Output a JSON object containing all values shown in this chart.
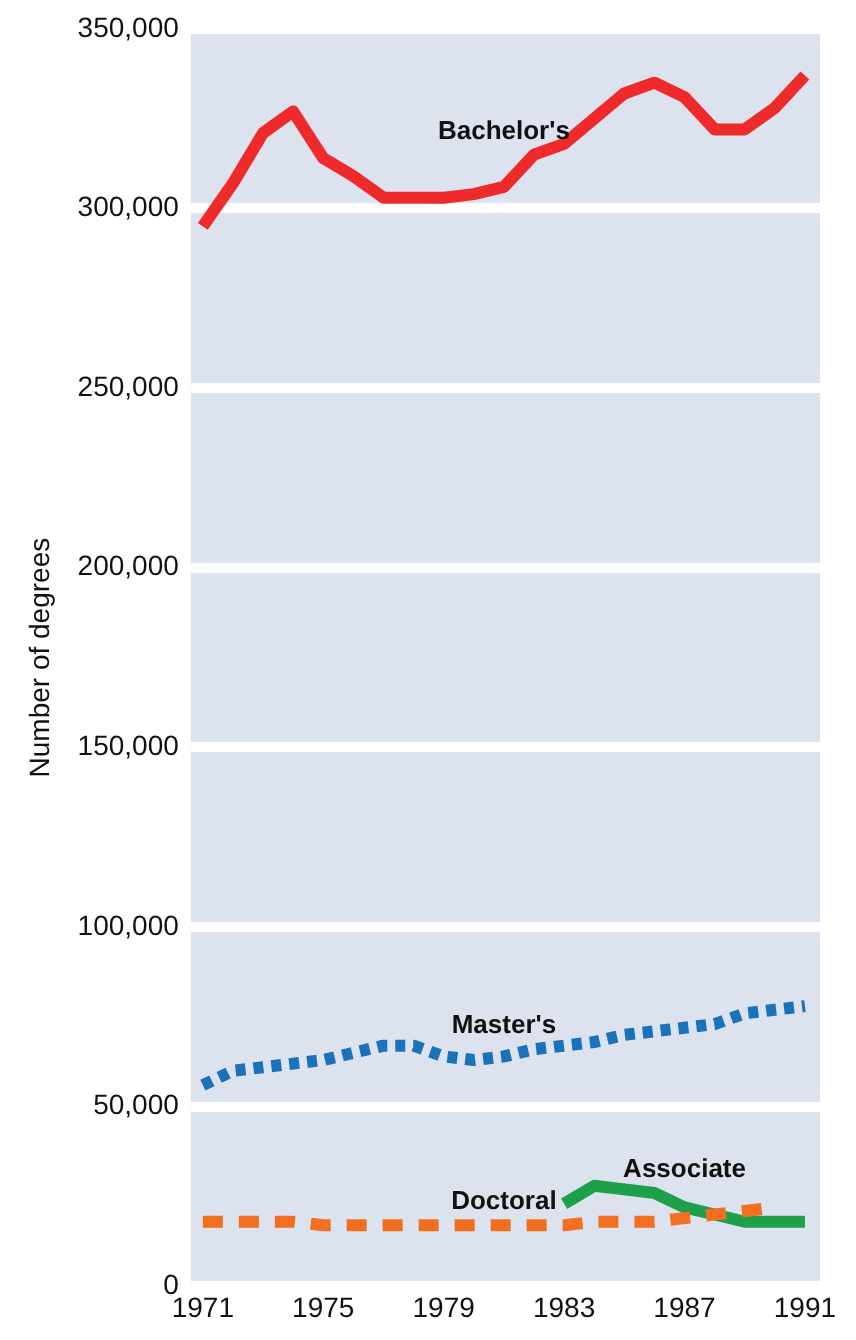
{
  "chart_data": {
    "type": "line",
    "ylabel": "Number of degrees",
    "x": [
      1971,
      1972,
      1973,
      1974,
      1975,
      1976,
      1977,
      1978,
      1979,
      1980,
      1981,
      1982,
      1983,
      1984,
      1985,
      1986,
      1987,
      1988,
      1989,
      1990,
      1991
    ],
    "series": [
      {
        "name": "Bachelor's",
        "color": "#ee2a2b",
        "line_style": "solid",
        "values": [
          295000,
          307000,
          321000,
          327000,
          314000,
          309000,
          303000,
          303000,
          303000,
          304000,
          306000,
          315000,
          318000,
          325000,
          332000,
          335000,
          331000,
          322000,
          322000,
          328000,
          337000
        ]
      },
      {
        "name": "Master's",
        "color": "#1a72bb",
        "line_style": "dotted",
        "values": [
          56000,
          60000,
          61000,
          62000,
          63000,
          65000,
          67000,
          67000,
          64000,
          63000,
          64000,
          66000,
          67000,
          68000,
          70000,
          71000,
          72000,
          73000,
          76000,
          77000,
          78000
        ]
      },
      {
        "name": "Doctoral",
        "color": "#f26f21",
        "line_style": "dashed",
        "values": [
          18000,
          18000,
          18000,
          18000,
          17000,
          17000,
          17000,
          17000,
          17000,
          17000,
          17000,
          17000,
          17000,
          18000,
          18000,
          18000,
          19000,
          20000,
          21000,
          22000,
          null
        ]
      },
      {
        "name": "Associate",
        "color": "#1ea04a",
        "line_style": "solid",
        "values": [
          null,
          null,
          null,
          null,
          null,
          null,
          null,
          null,
          null,
          null,
          null,
          null,
          23000,
          28000,
          27000,
          26000,
          22000,
          20000,
          18000,
          18000,
          18000
        ]
      }
    ],
    "xlim": [
      1970.6,
      1991.5
    ],
    "xticks": [
      1971,
      1975,
      1979,
      1983,
      1987,
      1991
    ],
    "ylim": [
      0,
      350000
    ],
    "yticks": [
      {
        "value": 0,
        "label": "0"
      },
      {
        "value": 50000,
        "label": "50,000"
      },
      {
        "value": 100000,
        "label": "100,000"
      },
      {
        "value": 150000,
        "label": "150,000"
      },
      {
        "value": 200000,
        "label": "200,000"
      },
      {
        "value": 250000,
        "label": "250,000"
      },
      {
        "value": 300000,
        "label": "300,000"
      },
      {
        "value": 350000,
        "label": "350,000"
      }
    ],
    "grid": "y",
    "legend": false,
    "marker": "none"
  }
}
